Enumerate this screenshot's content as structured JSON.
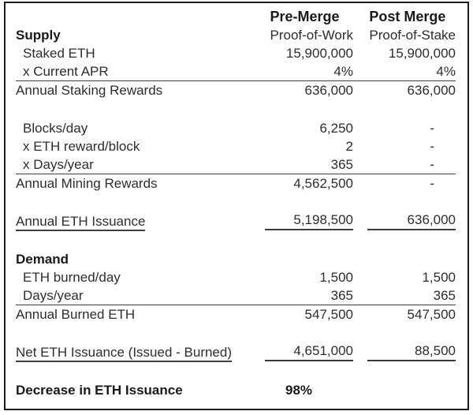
{
  "header": {
    "pre_title": "Pre-Merge",
    "pre_subtitle": "Proof-of-Work",
    "post_title": "Post Merge",
    "post_subtitle": "Proof-of-Stake"
  },
  "supply": {
    "heading": "Supply",
    "staked_eth": {
      "label": "Staked ETH",
      "pre": "15,900,000",
      "post": "15,900,000"
    },
    "current_apr": {
      "label": "x Current APR",
      "pre": "4%",
      "post": "4%"
    },
    "annual_staking_rewards": {
      "label": "Annual Staking Rewards",
      "pre": "636,000",
      "post": "636,000"
    },
    "blocks_per_day": {
      "label": "Blocks/day",
      "pre": "6,250",
      "post": "-"
    },
    "eth_reward_per_block": {
      "label": "x ETH reward/block",
      "pre": "2",
      "post": "-"
    },
    "days_per_year": {
      "label": "x Days/year",
      "pre": "365",
      "post": "-"
    },
    "annual_mining_rewards": {
      "label": "Annual Mining Rewards",
      "pre": "4,562,500",
      "post": "-"
    },
    "annual_eth_issuance": {
      "label": "Annual ETH Issuance",
      "pre": "5,198,500",
      "post": "636,000"
    }
  },
  "demand": {
    "heading": "Demand",
    "eth_burned_per_day": {
      "label": "ETH burned/day",
      "pre": "1,500",
      "post": "1,500"
    },
    "days_per_year": {
      "label": "Days/year",
      "pre": "365",
      "post": "365"
    },
    "annual_burned_eth": {
      "label": "Annual Burned ETH",
      "pre": "547,500",
      "post": "547,500"
    },
    "net_eth_issuance": {
      "label": "Net ETH Issuance (Issued - Burned)",
      "pre": "4,651,000",
      "post": "88,500"
    }
  },
  "summary": {
    "label": "Decrease in ETH Issuance",
    "value": "98%"
  },
  "colors": {
    "text": "#2d2d2d",
    "bold_text": "#1a1a1a",
    "border": "#1d1d1d",
    "rule": "#3d3d3d",
    "background": "#ffffff"
  }
}
